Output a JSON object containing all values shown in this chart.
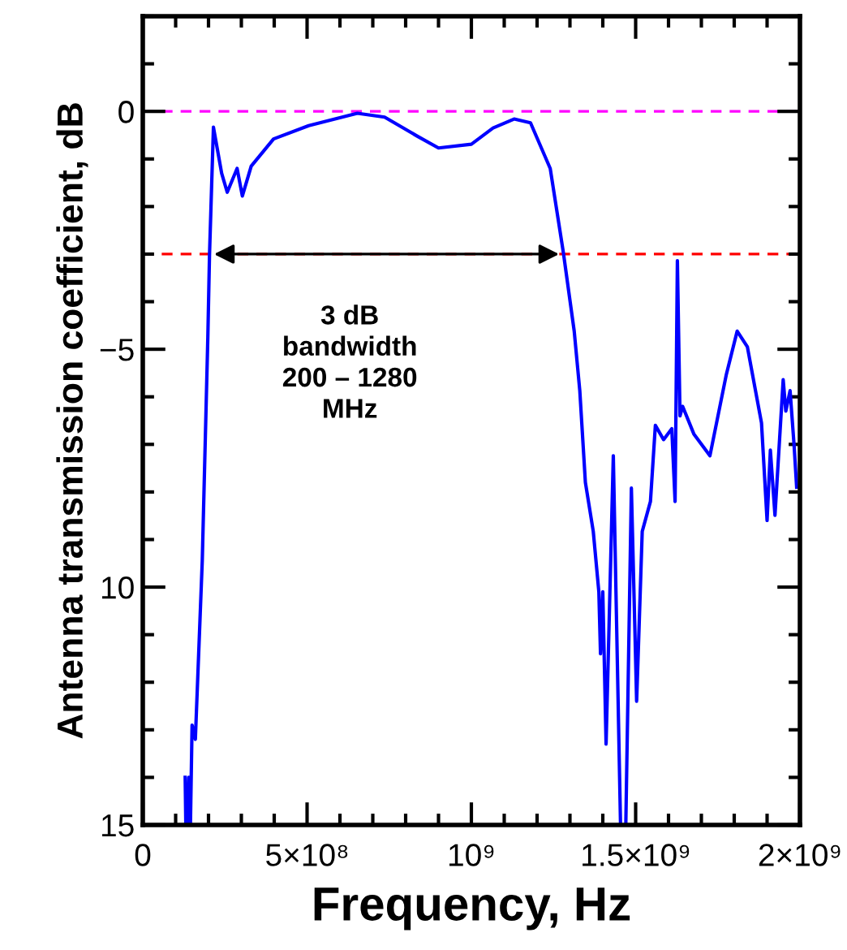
{
  "chart_data": {
    "type": "line",
    "xlabel": "Frequency, Hz",
    "ylabel": "Antenna transmission coefficient, dB",
    "xlim": [
      0,
      2000000000
    ],
    "ylim": [
      -15,
      2
    ],
    "xticks": [
      {
        "value": 0,
        "label": "0"
      },
      {
        "value": 100000000,
        "label": null
      },
      {
        "value": 200000000,
        "label": null
      },
      {
        "value": 300000000,
        "label": null
      },
      {
        "value": 400000000,
        "label": null
      },
      {
        "value": 500000000,
        "label": "5×10⁸"
      },
      {
        "value": 600000000,
        "label": null
      },
      {
        "value": 700000000,
        "label": null
      },
      {
        "value": 800000000,
        "label": null
      },
      {
        "value": 900000000,
        "label": null
      },
      {
        "value": 1000000000,
        "label": "10⁹"
      },
      {
        "value": 1100000000,
        "label": null
      },
      {
        "value": 1200000000,
        "label": null
      },
      {
        "value": 1300000000,
        "label": null
      },
      {
        "value": 1400000000,
        "label": null
      },
      {
        "value": 1500000000,
        "label": "1.5×10⁹"
      },
      {
        "value": 1600000000,
        "label": null
      },
      {
        "value": 1700000000,
        "label": null
      },
      {
        "value": 1800000000,
        "label": null
      },
      {
        "value": 1900000000,
        "label": null
      },
      {
        "value": 2000000000,
        "label": "2×10⁹"
      }
    ],
    "yticks": [
      {
        "value": -15,
        "label": "15"
      },
      {
        "value": -14,
        "label": null
      },
      {
        "value": -13,
        "label": null
      },
      {
        "value": -12,
        "label": null
      },
      {
        "value": -11,
        "label": null
      },
      {
        "value": -10,
        "label": "10"
      },
      {
        "value": -9,
        "label": null
      },
      {
        "value": -8,
        "label": null
      },
      {
        "value": -7,
        "label": null
      },
      {
        "value": -6,
        "label": null
      },
      {
        "value": -5,
        "label": "−5"
      },
      {
        "value": -4,
        "label": null
      },
      {
        "value": -3,
        "label": null
      },
      {
        "value": -2,
        "label": null
      },
      {
        "value": -1,
        "label": null
      },
      {
        "value": 0,
        "label": "0"
      },
      {
        "value": 1,
        "label": null
      },
      {
        "value": 2,
        "label": null
      }
    ],
    "grid": false,
    "marker": "none",
    "line_style": "solid",
    "series": [
      {
        "color": "#0000ff",
        "x": [
          129000000,
          131000000,
          133000000,
          136000000,
          140000000,
          145000000,
          150000000,
          160000000,
          181000000,
          198000000,
          203000000,
          215000000,
          240000000,
          257000000,
          287000000,
          303000000,
          330000000,
          398000000,
          505000000,
          653000000,
          736000000,
          835000000,
          900000000,
          1000000000,
          1066000000,
          1130000000,
          1180000000,
          1240000000,
          1280000000,
          1313000000,
          1330000000,
          1347000000,
          1371000000,
          1388000000,
          1393000000,
          1400000000,
          1410000000,
          1432000000,
          1454000000,
          1470000000,
          1487000000,
          1503000000,
          1520000000,
          1545000000,
          1560000000,
          1585000000,
          1610000000,
          1620000000,
          1627000000,
          1635000000,
          1643000000,
          1677000000,
          1726000000,
          1776000000,
          1809000000,
          1840000000,
          1883000000,
          1900000000,
          1910000000,
          1924000000,
          1949000000,
          1957000000,
          1970000000,
          1982000000,
          1990000000
        ],
        "values": [
          -14.0,
          -15,
          -14.5,
          -15,
          -14.0,
          -15,
          -12.9,
          -13.2,
          -9.45,
          -4.74,
          -3.03,
          -0.33,
          -1.3,
          -1.7,
          -1.2,
          -1.78,
          -1.15,
          -0.58,
          -0.3,
          -0.04,
          -0.12,
          -0.52,
          -0.77,
          -0.69,
          -0.35,
          -0.16,
          -0.24,
          -1.2,
          -2.97,
          -4.62,
          -5.87,
          -7.8,
          -8.83,
          -10.1,
          -11.4,
          -10.1,
          -13.3,
          -7.24,
          -15,
          -15,
          -7.92,
          -12.4,
          -8.83,
          -8.2,
          -6.6,
          -6.9,
          -6.67,
          -8.2,
          -3.14,
          -6.4,
          -6.2,
          -6.78,
          -7.24,
          -5.53,
          -4.62,
          -4.95,
          -6.55,
          -8.6,
          -7.12,
          -8.49,
          -5.64,
          -6.3,
          -5.87,
          -7.0,
          -7.9
        ]
      }
    ],
    "ref_lines": [
      {
        "axis": "y",
        "value": 0,
        "color": "#ff00ff",
        "line_style": "dashed"
      },
      {
        "axis": "y",
        "value": -3,
        "color": "#ff0000",
        "line_style": "dashed"
      }
    ],
    "annotations": [
      "3 dB\nbandwidth\n200 – 1280\nMHz"
    ]
  }
}
